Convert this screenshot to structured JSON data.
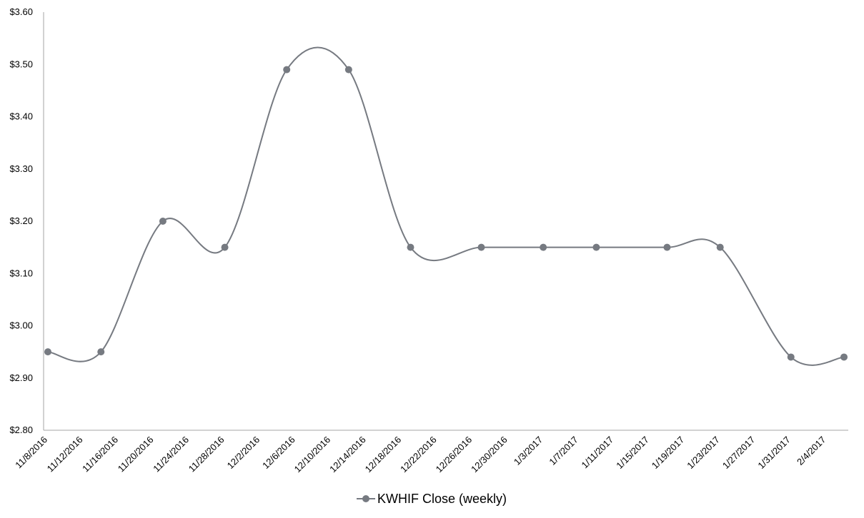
{
  "chart_data": {
    "type": "line",
    "smooth": true,
    "x_dates": [
      "11/8/2016",
      "11/14/2016",
      "11/21/2016",
      "11/28/2016",
      "12/5/2016",
      "12/12/2016",
      "12/19/2016",
      "12/27/2016",
      "1/3/2017",
      "1/9/2017",
      "1/17/2017",
      "1/23/2017",
      "1/31/2017",
      "2/6/2017"
    ],
    "series": [
      {
        "name": "KWHIF Close (weekly)",
        "color": "#767a81",
        "values": [
          2.95,
          2.95,
          3.2,
          3.15,
          3.49,
          3.49,
          3.15,
          3.15,
          3.15,
          3.15,
          3.15,
          3.15,
          2.94,
          2.94
        ]
      }
    ],
    "x_tick_labels": [
      "11/8/2016",
      "11/12/2016",
      "11/16/2016",
      "11/20/2016",
      "11/24/2016",
      "11/28/2016",
      "12/2/2016",
      "12/6/2016",
      "12/10/2016",
      "12/14/2016",
      "12/18/2016",
      "12/22/2016",
      "12/26/2016",
      "12/30/2016",
      "1/3/2017",
      "1/7/2017",
      "1/11/2017",
      "1/15/2017",
      "1/19/2017",
      "1/23/2017",
      "1/27/2017",
      "1/31/2017",
      "2/4/2017"
    ],
    "y_tick_labels": [
      "$2.80",
      "$2.90",
      "$3.00",
      "$3.10",
      "$3.20",
      "$3.30",
      "$3.40",
      "$3.50",
      "$3.60"
    ],
    "ylim": [
      2.8,
      3.6
    ],
    "grid": false,
    "legend_position": "bottom",
    "axis_color": "#a6a6a6"
  }
}
